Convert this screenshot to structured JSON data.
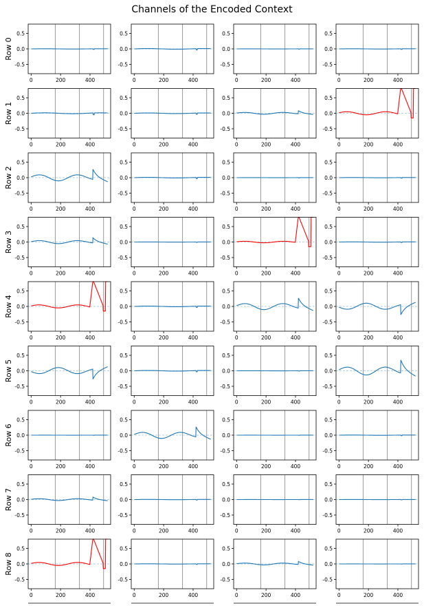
{
  "title": "Channels of the Encoded Context",
  "colors": {
    "normal": "#1f77b4",
    "highlight": "#ff0000",
    "zero_line": "#9ec3e0",
    "vline": "#999999",
    "axes": "#000000"
  },
  "chart_data": {
    "type": "line",
    "grid": "9 rows x 4 columns of small line plots",
    "rows": [
      "Row 0",
      "Row 1",
      "Row 2",
      "Row 3",
      "Row 4",
      "Row 5",
      "Row 6",
      "Row 7",
      "Row 8"
    ],
    "xlim": [
      -20,
      540
    ],
    "ylim": [
      -0.8,
      0.8
    ],
    "xticks": [
      0,
      200,
      400
    ],
    "yticks": [
      0.5,
      0.0,
      -0.5
    ],
    "ytick_labels": [
      "0.5",
      "0.0",
      "-0.5"
    ],
    "vlines": [
      164,
      328,
      492
    ],
    "zero_line": true,
    "panels": [
      [
        {
          "style": "flat",
          "amp": 0.01,
          "color": "normal"
        },
        {
          "style": "flat",
          "amp": 0.02,
          "color": "normal"
        },
        {
          "style": "flat",
          "amp": 0.005,
          "color": "normal"
        },
        {
          "style": "flat",
          "amp": 0.01,
          "color": "normal"
        }
      ],
      [
        {
          "style": "flat",
          "amp": 0.03,
          "color": "normal"
        },
        {
          "style": "flat",
          "amp": 0.02,
          "color": "normal"
        },
        {
          "style": "wave",
          "amp": 0.3,
          "color": "normal"
        },
        {
          "style": "spike",
          "amp": 1.0,
          "color": "highlight"
        }
      ],
      [
        {
          "style": "wave",
          "amp": 1.0,
          "color": "normal"
        },
        {
          "style": "flat",
          "amp": 0.02,
          "color": "normal"
        },
        {
          "style": "flat",
          "amp": 0.005,
          "color": "normal"
        },
        {
          "style": "flat",
          "amp": 0.01,
          "color": "normal"
        }
      ],
      [
        {
          "style": "wave",
          "amp": 0.5,
          "color": "normal"
        },
        {
          "style": "flat",
          "amp": 0.005,
          "color": "normal"
        },
        {
          "style": "spike",
          "amp": 0.5,
          "color": "highlight"
        },
        {
          "style": "flat",
          "amp": 0.01,
          "color": "normal"
        }
      ],
      [
        {
          "style": "spike",
          "amp": 1.0,
          "color": "highlight"
        },
        {
          "style": "flat",
          "amp": 0.02,
          "color": "normal"
        },
        {
          "style": "wave",
          "amp": 1.0,
          "color": "normal"
        },
        {
          "style": "wave",
          "amp": -1.0,
          "color": "normal"
        }
      ],
      [
        {
          "style": "wave",
          "amp": -1.0,
          "color": "normal"
        },
        {
          "style": "flat",
          "amp": 0.02,
          "color": "normal"
        },
        {
          "style": "flat",
          "amp": 0.005,
          "color": "normal"
        },
        {
          "style": "wave",
          "amp": 1.3,
          "color": "normal"
        }
      ],
      [
        {
          "style": "flat",
          "amp": 0.003,
          "color": "normal"
        },
        {
          "style": "wave",
          "amp": 1.0,
          "color": "normal"
        },
        {
          "style": "flat",
          "amp": 0.003,
          "color": "normal"
        },
        {
          "style": "flat",
          "amp": 0.01,
          "color": "normal"
        }
      ],
      [
        {
          "style": "wave",
          "amp": 0.3,
          "color": "normal"
        },
        {
          "style": "flat",
          "amp": 0.01,
          "color": "normal"
        },
        {
          "style": "flat",
          "amp": 0.003,
          "color": "normal"
        },
        {
          "style": "flat",
          "amp": 0.005,
          "color": "normal"
        }
      ],
      [
        {
          "style": "spike",
          "amp": 1.0,
          "color": "highlight"
        },
        {
          "style": "flat",
          "amp": 0.01,
          "color": "normal"
        },
        {
          "style": "wave",
          "amp": 0.3,
          "color": "normal"
        },
        {
          "style": "flat",
          "amp": 0.003,
          "color": "normal"
        }
      ]
    ]
  }
}
